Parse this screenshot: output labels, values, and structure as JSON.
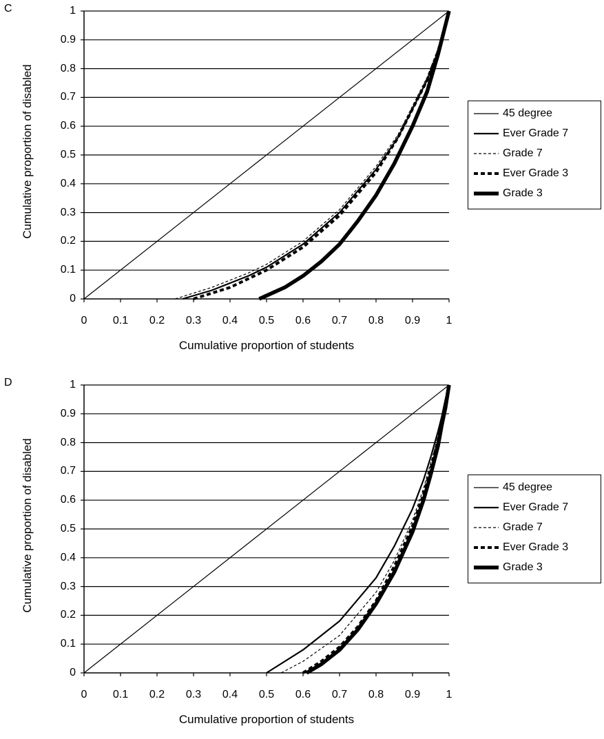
{
  "chart_data": [
    {
      "type": "line",
      "panel_label": "C",
      "xlabel": "Cumulative proportion of students",
      "ylabel": "Cumulative proportion of disabled",
      "xlim": [
        0,
        1
      ],
      "ylim": [
        0,
        1
      ],
      "x_ticks": [
        "0",
        "0.1",
        "0.2",
        "0.3",
        "0.4",
        "0.5",
        "0.6",
        "0.7",
        "0.8",
        "0.9",
        "1"
      ],
      "y_ticks": [
        "0",
        "0.1",
        "0.2",
        "0.3",
        "0.4",
        "0.5",
        "0.6",
        "0.7",
        "0.8",
        "0.9",
        "1"
      ],
      "grid": "horizontal",
      "legend_position": "right",
      "series": [
        {
          "name": "45 degree",
          "style": "thin-solid",
          "x": [
            0,
            1
          ],
          "y": [
            0,
            1
          ]
        },
        {
          "name": "Ever Grade 7",
          "style": "solid",
          "x": [
            0.27,
            0.35,
            0.45,
            0.5,
            0.6,
            0.7,
            0.8,
            0.86,
            0.9,
            0.94,
            0.97,
            1.0
          ],
          "y": [
            0,
            0.03,
            0.08,
            0.11,
            0.19,
            0.3,
            0.45,
            0.56,
            0.66,
            0.76,
            0.86,
            1
          ]
        },
        {
          "name": "Grade 7",
          "style": "thin-dashed",
          "x": [
            0.25,
            0.35,
            0.45,
            0.5,
            0.6,
            0.7,
            0.8,
            0.86,
            0.9,
            0.94,
            0.97,
            1.0
          ],
          "y": [
            0,
            0.04,
            0.09,
            0.12,
            0.2,
            0.31,
            0.46,
            0.57,
            0.67,
            0.77,
            0.87,
            1
          ]
        },
        {
          "name": "Ever Grade 3",
          "style": "thick-dashed",
          "x": [
            0.3,
            0.4,
            0.5,
            0.6,
            0.7,
            0.8,
            0.86,
            0.9,
            0.94,
            0.97,
            1.0
          ],
          "y": [
            0,
            0.04,
            0.1,
            0.18,
            0.29,
            0.44,
            0.56,
            0.66,
            0.76,
            0.86,
            1
          ]
        },
        {
          "name": "Grade 3",
          "style": "thick-solid",
          "x": [
            0.48,
            0.55,
            0.6,
            0.65,
            0.7,
            0.75,
            0.8,
            0.85,
            0.9,
            0.94,
            0.97,
            1.0
          ],
          "y": [
            0,
            0.04,
            0.08,
            0.13,
            0.19,
            0.27,
            0.36,
            0.47,
            0.6,
            0.72,
            0.85,
            1
          ]
        }
      ]
    },
    {
      "type": "line",
      "panel_label": "D",
      "xlabel": "Cumulative proportion of students",
      "ylabel": "Cumulative proportion of disabled",
      "xlim": [
        0,
        1
      ],
      "ylim": [
        0,
        1
      ],
      "x_ticks": [
        "0",
        "0.1",
        "0.2",
        "0.3",
        "0.4",
        "0.5",
        "0.6",
        "0.7",
        "0.8",
        "0.9",
        "1"
      ],
      "y_ticks": [
        "0",
        "0.1",
        "0.2",
        "0.3",
        "0.4",
        "0.5",
        "0.6",
        "0.7",
        "0.8",
        "0.9",
        "1"
      ],
      "grid": "horizontal",
      "legend_position": "right",
      "series": [
        {
          "name": "45 degree",
          "style": "thin-solid",
          "x": [
            0,
            1
          ],
          "y": [
            0,
            1
          ]
        },
        {
          "name": "Ever Grade 7",
          "style": "solid",
          "x": [
            0.5,
            0.6,
            0.7,
            0.8,
            0.85,
            0.9,
            0.93,
            0.95,
            0.97,
            0.98,
            0.99,
            1.0
          ],
          "y": [
            0,
            0.08,
            0.18,
            0.33,
            0.44,
            0.57,
            0.67,
            0.75,
            0.84,
            0.89,
            0.95,
            1
          ]
        },
        {
          "name": "Grade 7",
          "style": "thin-dashed",
          "x": [
            0.54,
            0.6,
            0.7,
            0.8,
            0.85,
            0.9,
            0.93,
            0.95,
            0.97,
            0.98,
            0.99,
            1.0
          ],
          "y": [
            0,
            0.04,
            0.13,
            0.28,
            0.39,
            0.53,
            0.64,
            0.73,
            0.82,
            0.88,
            0.94,
            1
          ]
        },
        {
          "name": "Ever Grade 3",
          "style": "thick-dashed",
          "x": [
            0.6,
            0.65,
            0.7,
            0.75,
            0.8,
            0.85,
            0.9,
            0.93,
            0.95,
            0.97,
            0.98,
            0.99,
            1.0
          ],
          "y": [
            0,
            0.04,
            0.09,
            0.16,
            0.25,
            0.37,
            0.51,
            0.62,
            0.71,
            0.81,
            0.87,
            0.93,
            1
          ]
        },
        {
          "name": "Grade 3",
          "style": "thick-solid",
          "x": [
            0.61,
            0.65,
            0.7,
            0.75,
            0.8,
            0.85,
            0.9,
            0.93,
            0.95,
            0.97,
            0.98,
            0.99,
            1.0
          ],
          "y": [
            0,
            0.03,
            0.08,
            0.15,
            0.24,
            0.35,
            0.49,
            0.6,
            0.69,
            0.79,
            0.86,
            0.92,
            1
          ]
        }
      ]
    }
  ]
}
